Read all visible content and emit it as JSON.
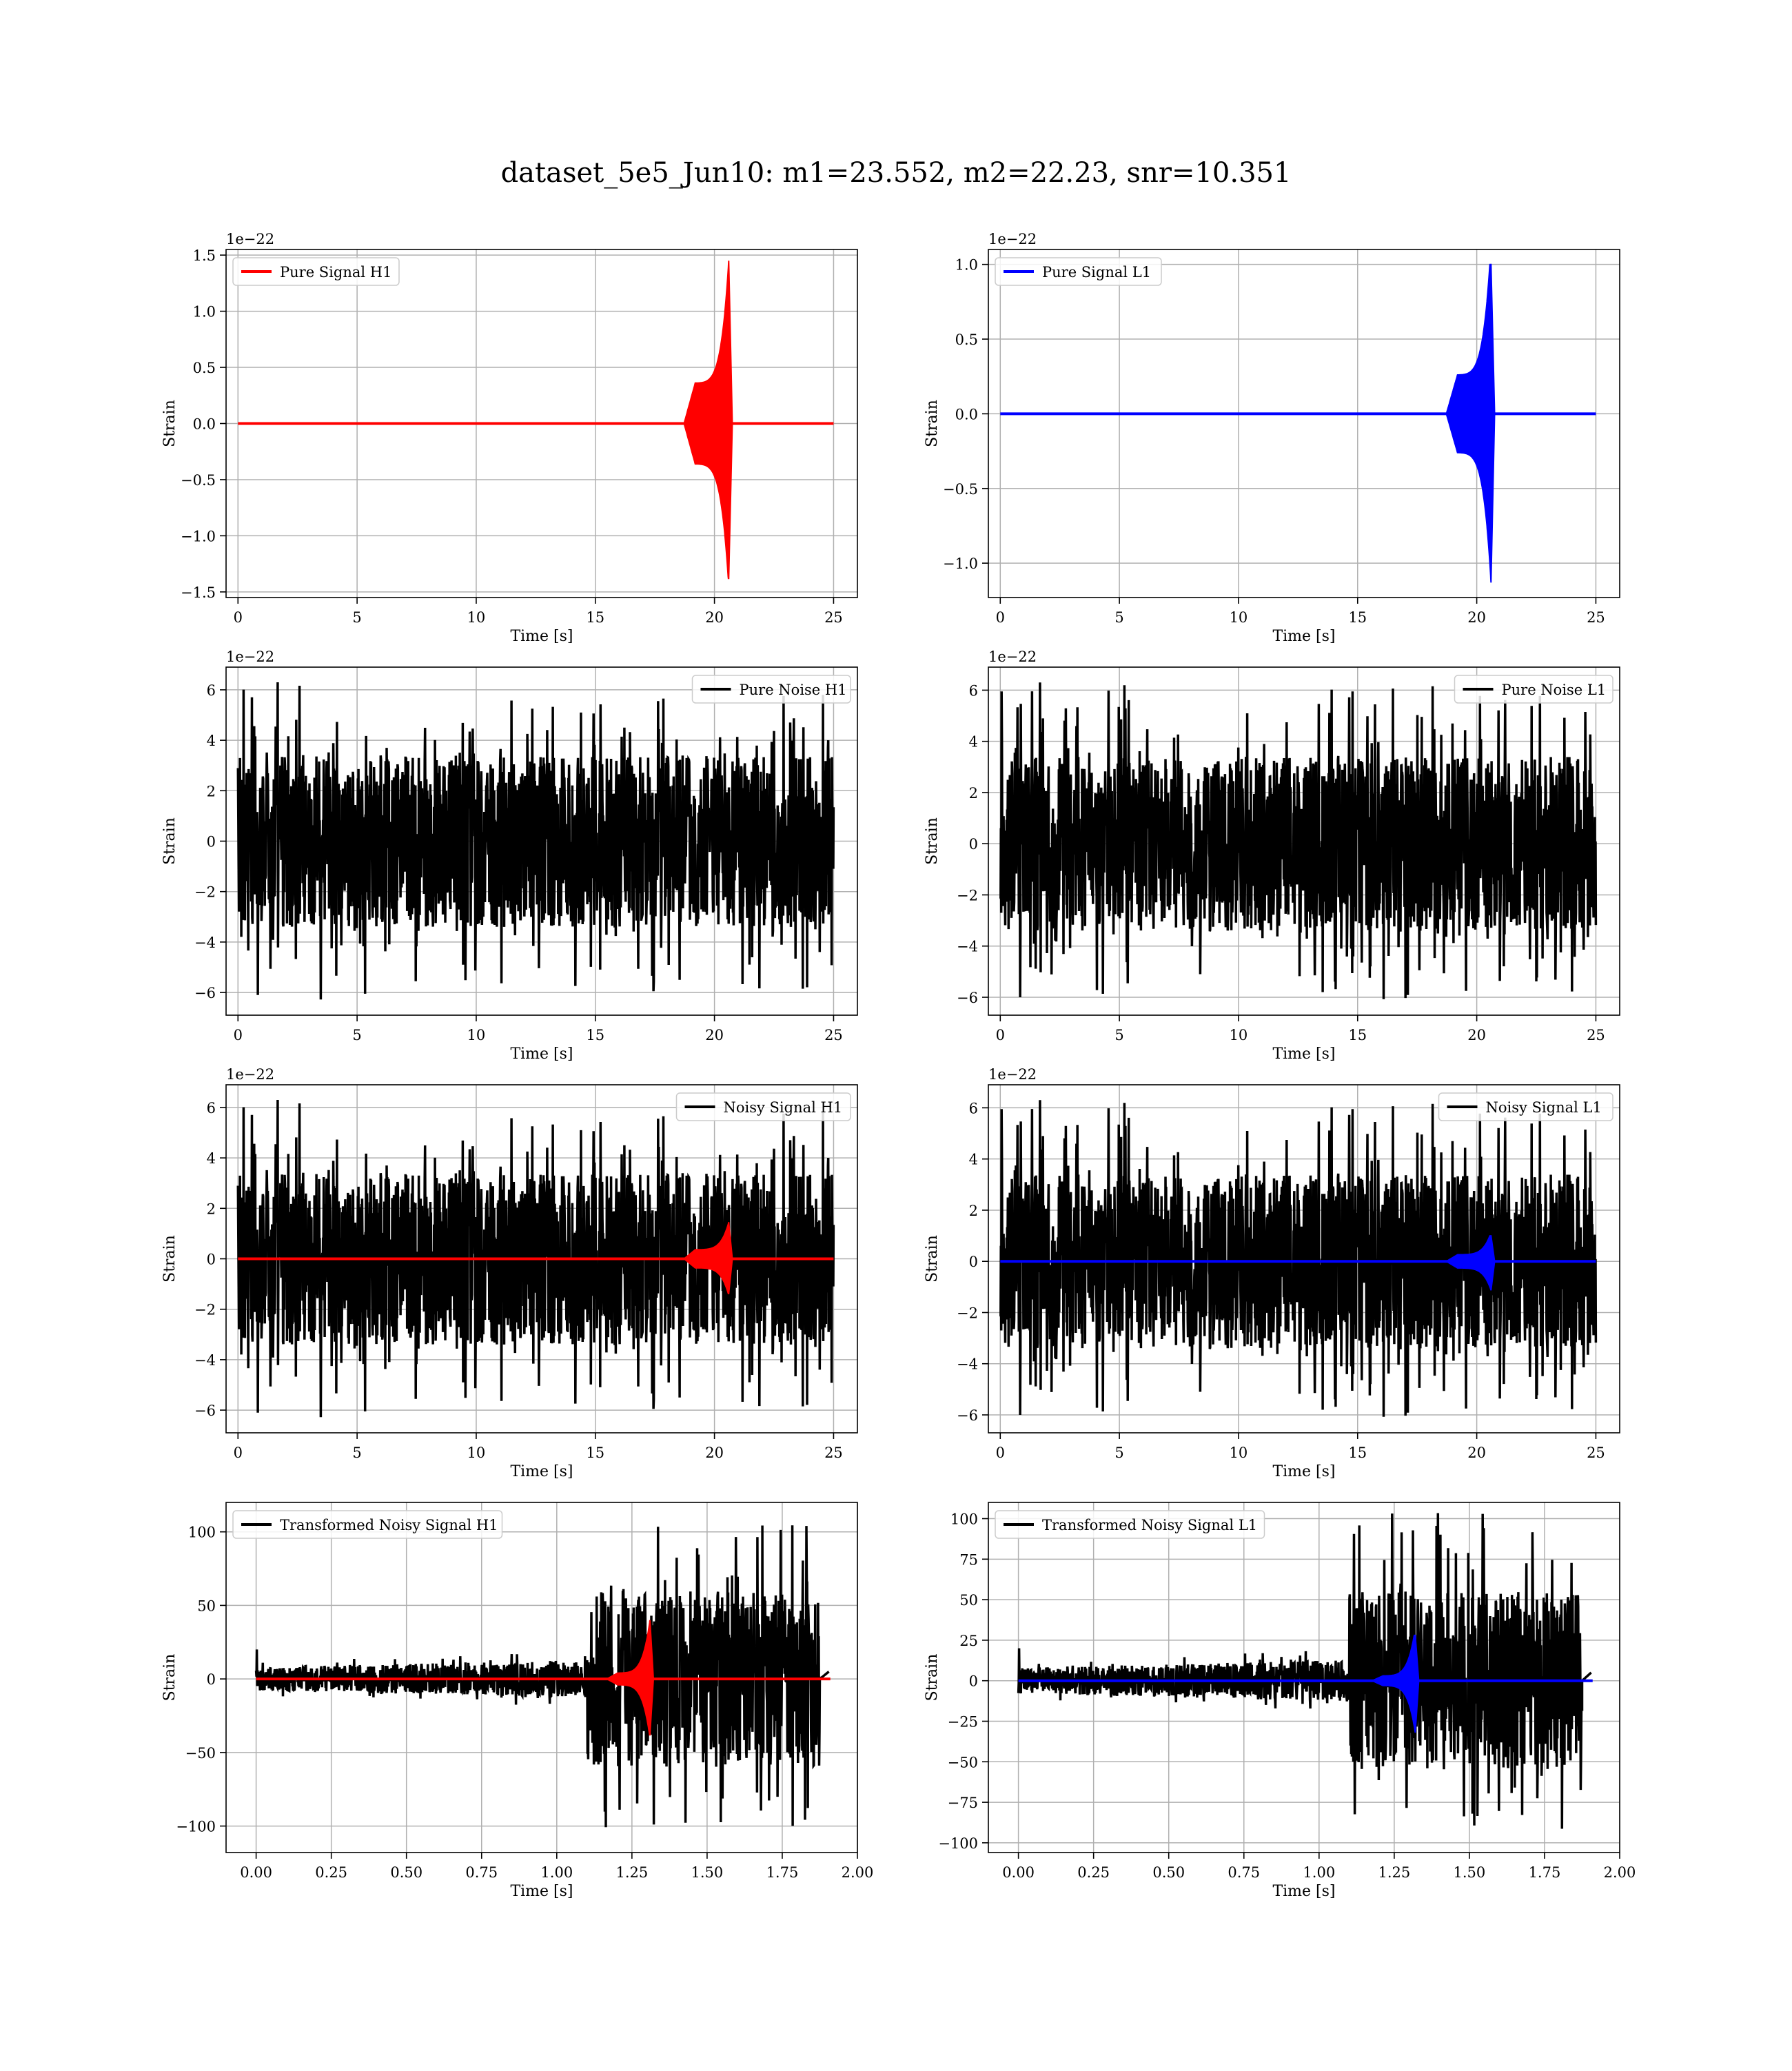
{
  "figure_title": "dataset_5e5_Jun10: m1=23.552, m2=22.23, snr=10.351",
  "colors": {
    "h1": "#ff0000",
    "l1": "#0000ff",
    "noise": "#000000",
    "grid": "#b0b0b0"
  },
  "chart_data": [
    {
      "id": "pure_signal_h1",
      "type": "line",
      "title": "",
      "xlabel": "Time [s]",
      "ylabel": "Strain",
      "offset_text": "1e−22",
      "xlim": [
        -0.5,
        26
      ],
      "ylim": [
        -1.55,
        1.55
      ],
      "xticks": [
        0,
        5,
        10,
        15,
        20,
        25
      ],
      "xtick_labels": [
        "0",
        "5",
        "10",
        "15",
        "20",
        "25"
      ],
      "yticks": [
        -1.5,
        -1.0,
        -0.5,
        0.0,
        0.5,
        1.0,
        1.5
      ],
      "ytick_labels": [
        "−1.5",
        "−1.0",
        "−0.5",
        "0.0",
        "0.5",
        "1.0",
        "1.5"
      ],
      "grid": true,
      "legend_position": "upper-left",
      "series": [
        {
          "name": "Pure Signal H1",
          "kind": "chirp",
          "color": "#ff0000",
          "x_start": 0,
          "x_end": 25,
          "merger_time": 20.6,
          "peak_max": 1.45,
          "peak_min": -1.38,
          "early_amp": 0.36
        }
      ]
    },
    {
      "id": "pure_signal_l1",
      "type": "line",
      "title": "",
      "xlabel": "Time [s]",
      "ylabel": "Strain",
      "offset_text": "1e−22",
      "xlim": [
        -0.5,
        26
      ],
      "ylim": [
        -1.23,
        1.1
      ],
      "xticks": [
        0,
        5,
        10,
        15,
        20,
        25
      ],
      "xtick_labels": [
        "0",
        "5",
        "10",
        "15",
        "20",
        "25"
      ],
      "yticks": [
        -1.0,
        -0.5,
        0.0,
        0.5,
        1.0
      ],
      "ytick_labels": [
        "−1.0",
        "−0.5",
        "0.0",
        "0.5",
        "1.0"
      ],
      "grid": true,
      "legend_position": "upper-left",
      "series": [
        {
          "name": "Pure Signal L1",
          "kind": "chirp",
          "color": "#0000ff",
          "x_start": 0,
          "x_end": 25,
          "merger_time": 20.6,
          "peak_max": 1.0,
          "peak_min": -1.13,
          "early_amp": 0.26
        }
      ]
    },
    {
      "id": "pure_noise_h1",
      "type": "line",
      "title": "",
      "xlabel": "Time [s]",
      "ylabel": "Strain",
      "offset_text": "1e−22",
      "xlim": [
        -0.5,
        26
      ],
      "ylim": [
        -6.9,
        6.9
      ],
      "xticks": [
        0,
        5,
        10,
        15,
        20,
        25
      ],
      "xtick_labels": [
        "0",
        "5",
        "10",
        "15",
        "20",
        "25"
      ],
      "yticks": [
        -6,
        -4,
        -2,
        0,
        2,
        4,
        6
      ],
      "ytick_labels": [
        "−6",
        "−4",
        "−2",
        "0",
        "2",
        "4",
        "6"
      ],
      "grid": true,
      "legend_position": "upper-right",
      "series": [
        {
          "name": "Pure Noise H1",
          "kind": "noise",
          "color": "#000000",
          "x_start": 0,
          "x_end": 25,
          "band": 3.4,
          "max": 6.3,
          "min": -6.1,
          "seed": 11
        }
      ]
    },
    {
      "id": "pure_noise_l1",
      "type": "line",
      "title": "",
      "xlabel": "Time [s]",
      "ylabel": "Strain",
      "offset_text": "1e−22",
      "xlim": [
        -0.5,
        26
      ],
      "ylim": [
        -6.7,
        6.9
      ],
      "xticks": [
        0,
        5,
        10,
        15,
        20,
        25
      ],
      "xtick_labels": [
        "0",
        "5",
        "10",
        "15",
        "20",
        "25"
      ],
      "yticks": [
        -6,
        -4,
        -2,
        0,
        2,
        4,
        6
      ],
      "ytick_labels": [
        "−6",
        "−4",
        "−2",
        "0",
        "2",
        "4",
        "6"
      ],
      "grid": true,
      "legend_position": "upper-right",
      "series": [
        {
          "name": "Pure Noise L1",
          "kind": "noise",
          "color": "#000000",
          "x_start": 0,
          "x_end": 25,
          "band": 3.4,
          "max": 6.3,
          "min": -6.0,
          "seed": 23
        }
      ]
    },
    {
      "id": "noisy_signal_h1",
      "type": "line",
      "title": "",
      "xlabel": "Time [s]",
      "ylabel": "Strain",
      "offset_text": "1e−22",
      "xlim": [
        -0.5,
        26
      ],
      "ylim": [
        -6.9,
        6.9
      ],
      "xticks": [
        0,
        5,
        10,
        15,
        20,
        25
      ],
      "xtick_labels": [
        "0",
        "5",
        "10",
        "15",
        "20",
        "25"
      ],
      "yticks": [
        -6,
        -4,
        -2,
        0,
        2,
        4,
        6
      ],
      "ytick_labels": [
        "−6",
        "−4",
        "−2",
        "0",
        "2",
        "4",
        "6"
      ],
      "grid": true,
      "legend_position": "upper-right",
      "series": [
        {
          "name": "Noisy Signal H1",
          "kind": "noise",
          "color": "#000000",
          "x_start": 0,
          "x_end": 25,
          "band": 3.4,
          "max": 6.3,
          "min": -6.1,
          "seed": 11
        },
        {
          "name": "",
          "kind": "chirp",
          "color": "#ff0000",
          "x_start": 0,
          "x_end": 25,
          "merger_time": 20.6,
          "peak_max": 1.45,
          "peak_min": -1.38,
          "early_amp": 0.36
        }
      ]
    },
    {
      "id": "noisy_signal_l1",
      "type": "line",
      "title": "",
      "xlabel": "Time [s]",
      "ylabel": "Strain",
      "offset_text": "1e−22",
      "xlim": [
        -0.5,
        26
      ],
      "ylim": [
        -6.7,
        6.9
      ],
      "xticks": [
        0,
        5,
        10,
        15,
        20,
        25
      ],
      "xtick_labels": [
        "0",
        "5",
        "10",
        "15",
        "20",
        "25"
      ],
      "yticks": [
        -6,
        -4,
        -2,
        0,
        2,
        4,
        6
      ],
      "ytick_labels": [
        "−6",
        "−4",
        "−2",
        "0",
        "2",
        "4",
        "6"
      ],
      "grid": true,
      "legend_position": "upper-right",
      "series": [
        {
          "name": "Noisy Signal L1",
          "kind": "noise",
          "color": "#000000",
          "x_start": 0,
          "x_end": 25,
          "band": 3.4,
          "max": 6.3,
          "min": -6.0,
          "seed": 23
        },
        {
          "name": "",
          "kind": "chirp",
          "color": "#0000ff",
          "x_start": 0,
          "x_end": 25,
          "merger_time": 20.6,
          "peak_max": 1.0,
          "peak_min": -1.13,
          "early_amp": 0.26
        }
      ]
    },
    {
      "id": "transformed_noisy_signal_h1",
      "type": "line",
      "title": "",
      "xlabel": "Time [s]",
      "ylabel": "Strain",
      "offset_text": "",
      "xlim": [
        -0.1,
        2.0
      ],
      "ylim": [
        -118,
        120
      ],
      "xticks": [
        0,
        0.25,
        0.5,
        0.75,
        1.0,
        1.25,
        1.5,
        1.75,
        2.0
      ],
      "xtick_labels": [
        "0.00",
        "0.25",
        "0.50",
        "0.75",
        "1.00",
        "1.25",
        "1.50",
        "1.75",
        "2.00"
      ],
      "yticks": [
        -100,
        -50,
        0,
        50,
        100
      ],
      "ytick_labels": [
        "−100",
        "−50",
        "0",
        "50",
        "100"
      ],
      "grid": true,
      "legend_position": "upper-left",
      "series": [
        {
          "name": "Transformed Noisy Signal H1",
          "kind": "whitened",
          "color": "#000000",
          "x_start": 0,
          "x_end": 1.875,
          "early_amp": 8,
          "late_amp": 60,
          "onset": 1.1,
          "max": 110,
          "min": -104,
          "seed": 5
        },
        {
          "name": "",
          "kind": "chirp",
          "color": "#ff0000",
          "x_start": 0,
          "x_end": 1.91,
          "merger_time": 1.31,
          "peak_max": 40,
          "peak_min": -38,
          "early_amp": 4
        }
      ]
    },
    {
      "id": "transformed_noisy_signal_l1",
      "type": "line",
      "title": "",
      "xlabel": "Time [s]",
      "ylabel": "Strain",
      "offset_text": "",
      "xlim": [
        -0.1,
        2.0
      ],
      "ylim": [
        -106,
        110
      ],
      "xticks": [
        0,
        0.25,
        0.5,
        0.75,
        1.0,
        1.25,
        1.5,
        1.75,
        2.0
      ],
      "xtick_labels": [
        "0.00",
        "0.25",
        "0.50",
        "0.75",
        "1.00",
        "1.25",
        "1.50",
        "1.75",
        "2.00"
      ],
      "yticks": [
        -100,
        -75,
        -50,
        -25,
        0,
        25,
        50,
        75,
        100
      ],
      "ytick_labels": [
        "−100",
        "−75",
        "−50",
        "−25",
        "0",
        "25",
        "50",
        "75",
        "100"
      ],
      "grid": true,
      "legend_position": "upper-left",
      "series": [
        {
          "name": "Transformed Noisy Signal L1",
          "kind": "whitened",
          "color": "#000000",
          "x_start": 0,
          "x_end": 1.875,
          "early_amp": 8,
          "late_amp": 55,
          "onset": 1.1,
          "max": 106,
          "min": -94,
          "seed": 9
        },
        {
          "name": "",
          "kind": "chirp",
          "color": "#0000ff",
          "x_start": 0,
          "x_end": 1.91,
          "merger_time": 1.32,
          "peak_max": 28,
          "peak_min": -32,
          "early_amp": 3
        }
      ]
    }
  ]
}
